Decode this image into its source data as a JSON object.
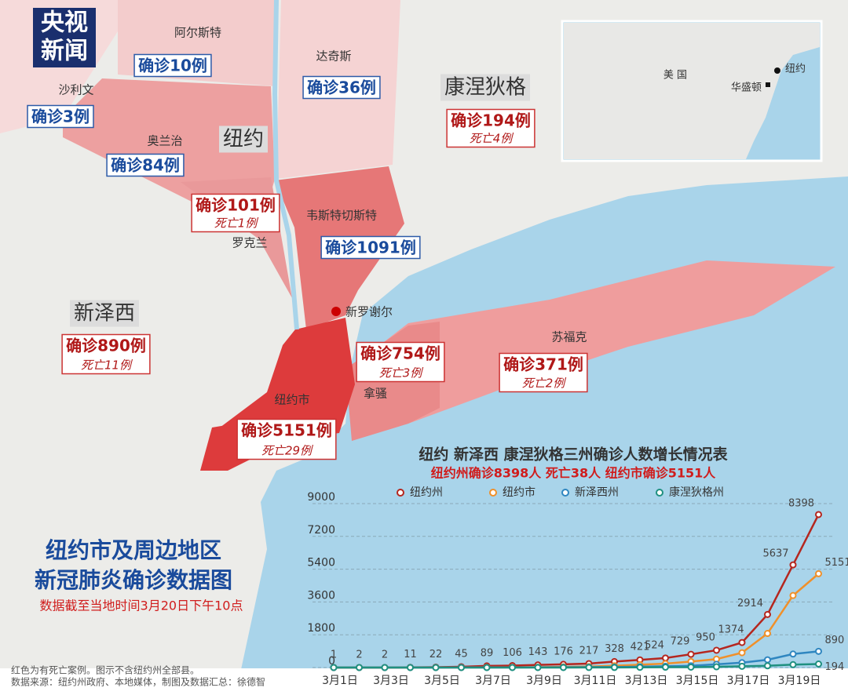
{
  "logo": [
    "央视",
    "新闻"
  ],
  "map": {
    "states": [
      {
        "name": "纽约"
      },
      {
        "name": "新泽西",
        "cases": "确诊890例",
        "deaths": "死亡11例"
      },
      {
        "name": "康涅狄格",
        "cases": "确诊194例",
        "deaths": "死亡4例"
      }
    ],
    "counties": [
      {
        "name": "阿尔斯特",
        "cases": "确诊10例"
      },
      {
        "name": "达奇斯",
        "cases": "确诊36例"
      },
      {
        "name": "沙利文",
        "cases": "确诊3例"
      },
      {
        "name": "奥兰治",
        "cases": "确诊84例"
      },
      {
        "name": "罗克兰",
        "cases": "确诊101例",
        "deaths": "死亡1例"
      },
      {
        "name": "韦斯特切斯特",
        "cases": "确诊1091例"
      },
      {
        "name": "拿骚",
        "cases": "确诊754例",
        "deaths": "死亡3例"
      },
      {
        "name": "苏福克",
        "cases": "确诊371例",
        "deaths": "死亡2例"
      },
      {
        "name": "纽约市",
        "cases": "确诊5151例",
        "deaths": "死亡29例"
      }
    ],
    "point": "新罗谢尔"
  },
  "inset": {
    "country": "美 国",
    "cities": [
      "纽约",
      "华盛顿"
    ]
  },
  "heading": {
    "lines": [
      "纽约市及周边地区",
      "新冠肺炎确诊数据图"
    ],
    "date_note": "数据截至当地时间3月20日下午10点"
  },
  "footnotes": [
    "红色为有死亡案例。图示不含纽约州全部县。",
    "数据来源：纽约州政府、本地媒体，制图及数据汇总：徐德智"
  ],
  "chart_data": {
    "type": "line",
    "title": "纽约 新泽西 康涅狄格三州确诊人数增长情况表",
    "subtitle": "纽约州确诊8398人 死亡38人 纽约市确诊5151人",
    "categories": [
      "3月1日",
      null,
      "3月3日",
      null,
      "3月5日",
      null,
      "3月7日",
      null,
      "3月9日",
      null,
      "3月11日",
      null,
      "3月13日",
      null,
      "3月15日",
      null,
      "3月17日",
      null,
      "3月19日",
      null
    ],
    "series": [
      {
        "name": "纽约州",
        "color": "#b5261e",
        "values": [
          1,
          2,
          2,
          11,
          22,
          45,
          89,
          106,
          143,
          176,
          217,
          328,
          421,
          524,
          729,
          950,
          1374,
          2914,
          5637,
          8398
        ]
      },
      {
        "name": "纽约市",
        "color": "#f0902a",
        "values": [
          1,
          1,
          1,
          2,
          4,
          5,
          12,
          13,
          19,
          36,
          52,
          95,
          154,
          213,
          329,
          463,
          814,
          1871,
          3954,
          5151
        ]
      },
      {
        "name": "新泽西州",
        "color": "#2f86c0",
        "values": [
          0,
          0,
          0,
          1,
          2,
          4,
          4,
          6,
          11,
          15,
          23,
          29,
          50,
          69,
          98,
          178,
          267,
          427,
          742,
          890
        ]
      },
      {
        "name": "康涅狄格州",
        "color": "#1f9080",
        "values": [
          0,
          0,
          0,
          0,
          0,
          0,
          0,
          1,
          1,
          2,
          3,
          5,
          11,
          20,
          24,
          41,
          68,
          96,
          159,
          194
        ]
      }
    ],
    "ylim": [
      0,
      9000
    ],
    "yticks": [
      0,
      1800,
      3600,
      5400,
      7200,
      9000
    ],
    "grid": true
  }
}
